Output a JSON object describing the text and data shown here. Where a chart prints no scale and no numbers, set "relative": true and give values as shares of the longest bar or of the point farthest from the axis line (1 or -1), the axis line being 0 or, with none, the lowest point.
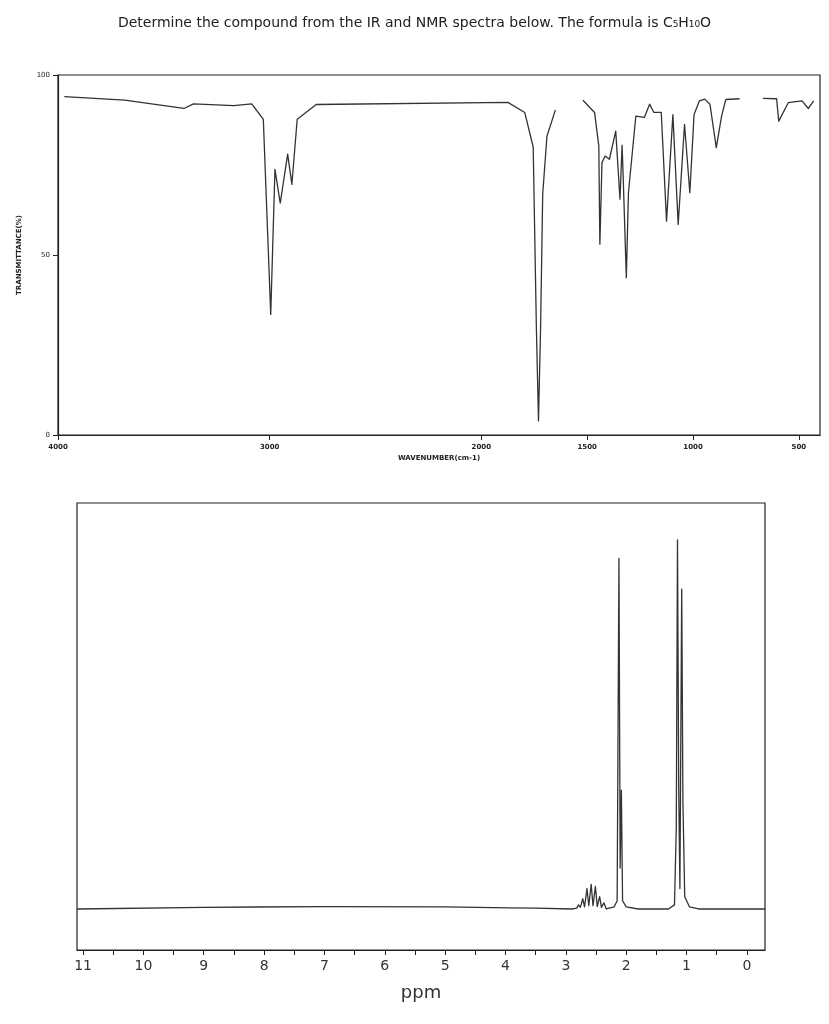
{
  "chart_data": [
    {
      "type": "line",
      "title": "Determine the compound from the IR and NMR spectra below. The formula is C₅H₁₀O",
      "xlabel": "WAVENUMBER(cm-1)",
      "ylabel": "TRANSMITTANCE(%)",
      "xlim": [
        4000,
        400
      ],
      "xticks": [
        4000,
        3000,
        2000,
        1500,
        1000,
        500
      ],
      "ylim": [
        0,
        100
      ],
      "yticks": [
        0,
        50,
        100
      ],
      "grid": false,
      "marker": "none",
      "series": [
        {
          "color": "#333333",
          "x": [
            3970,
            3685,
            3405,
            3360,
            3170,
            3085,
            3030,
            2995,
            2975,
            2950,
            2915,
            2895,
            2870,
            2780,
            1875,
            1795,
            1755,
            1740,
            1730,
            1720,
            1710,
            1690,
            1650,
            1600,
            1520,
            1465,
            1445,
            1440,
            1430,
            1415,
            1395,
            1365,
            1345,
            1335,
            1330,
            1315,
            1305,
            1270,
            1230,
            1205,
            1185,
            1150,
            1125,
            1095,
            1070,
            1040,
            1015,
            995,
            970,
            945,
            920,
            890,
            865,
            845,
            780,
            720,
            670,
            605,
            595,
            550,
            485,
            455,
            430
          ],
          "values": [
            94,
            93,
            90.7,
            92,
            91.5,
            92,
            87.7,
            33.5,
            73.8,
            64.4,
            78,
            69.6,
            87.7,
            91.8,
            92.4,
            89.6,
            80,
            30,
            3.9,
            30,
            67,
            83,
            90.3,
            null,
            93,
            89.6,
            80.3,
            53,
            75.7,
            77.5,
            76.6,
            84.4,
            65.5,
            80.5,
            72,
            43.7,
            67.3,
            88.6,
            88.2,
            91.9,
            89.6,
            89.6,
            59.4,
            89,
            58.5,
            86.3,
            67.3,
            89,
            92.8,
            93.3,
            91.9,
            79.8,
            88.6,
            93.2,
            93.4,
            null,
            93.5,
            93.4,
            87.2,
            92.3,
            92.8,
            90.7,
            92.8
          ]
        }
      ]
    },
    {
      "type": "line",
      "xlabel": "ppm",
      "xlim": [
        11.1,
        -0.3
      ],
      "xticks": [
        11,
        {
          "value": 10.5,
          "label": null
        },
        10,
        {
          "value": 9.5,
          "label": null
        },
        9,
        {
          "value": 8.5,
          "label": null
        },
        8,
        {
          "value": 7.5,
          "label": null
        },
        7,
        {
          "value": 6.5,
          "label": null
        },
        6,
        {
          "value": 5.5,
          "label": null
        },
        5,
        {
          "value": 4.5,
          "label": null
        },
        4,
        {
          "value": 3.5,
          "label": null
        },
        3,
        {
          "value": 2.5,
          "label": null
        },
        2,
        {
          "value": 1.5,
          "label": null
        },
        1,
        {
          "value": 0.5,
          "label": null
        },
        0
      ],
      "relative": true,
      "tick_labels": "x",
      "grid": false,
      "marker": "none",
      "series": [
        {
          "color": "#333333",
          "x": [
            11.1,
            9,
            7,
            5,
            3.5,
            2.9,
            2.82,
            2.79,
            2.76,
            2.72,
            2.69,
            2.65,
            2.62,
            2.58,
            2.55,
            2.51,
            2.48,
            2.44,
            2.41,
            2.37,
            2.33,
            2.2,
            2.15,
            2.12,
            2.1,
            2.08,
            2.06,
            2.0,
            1.8,
            1.3,
            1.2,
            1.17,
            1.15,
            1.13,
            1.11,
            1.08,
            1.06,
            1.03,
            0.95,
            0.8,
            0,
            -0.3
          ],
          "values": [
            0.1,
            0.104,
            0.106,
            0.105,
            0.102,
            0.1,
            0.102,
            0.11,
            0.104,
            0.125,
            0.105,
            0.15,
            0.108,
            0.16,
            0.108,
            0.155,
            0.106,
            0.13,
            0.104,
            0.115,
            0.1,
            0.105,
            0.12,
            0.955,
            0.2,
            0.39,
            0.12,
            0.105,
            0.1,
            0.1,
            0.11,
            0.3,
            1,
            0.4,
            0.15,
            0.88,
            0.36,
            0.13,
            0.105,
            0.1,
            0.1,
            0.1
          ]
        }
      ]
    }
  ]
}
